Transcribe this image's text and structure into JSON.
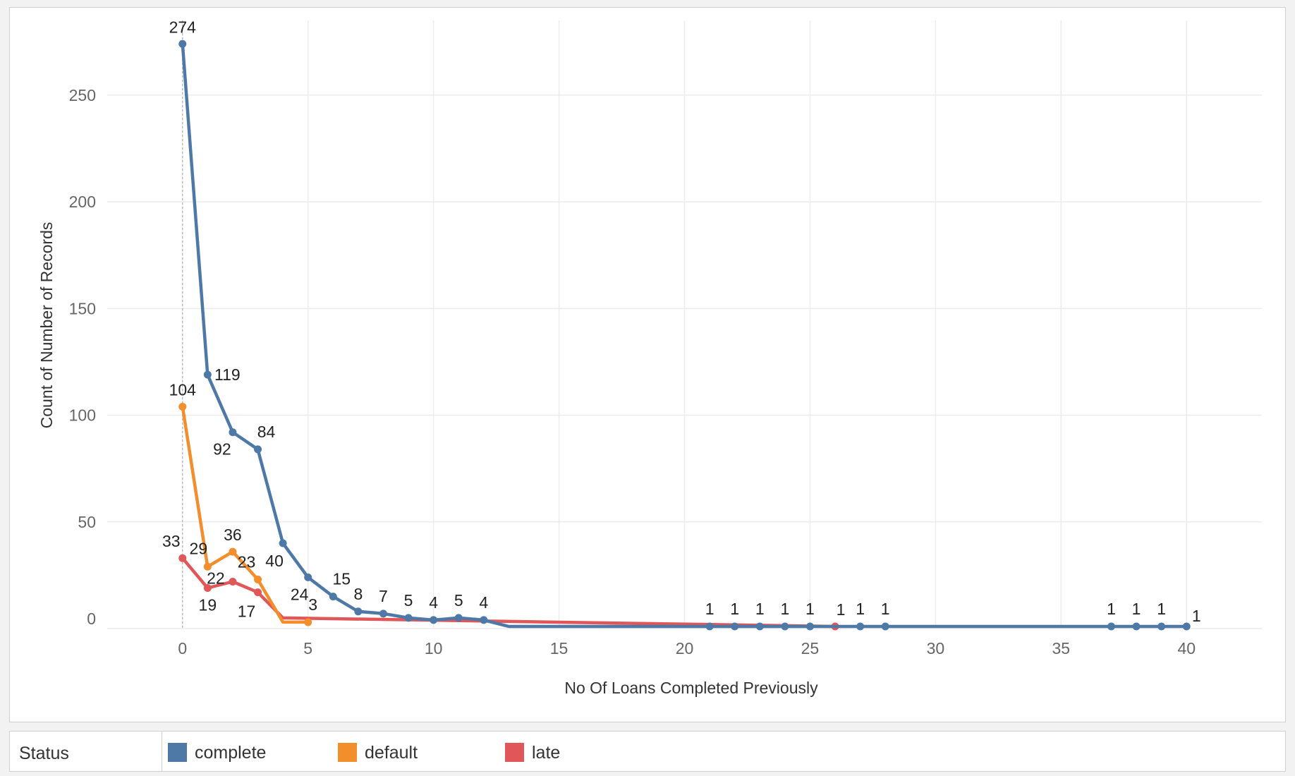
{
  "chart_data": {
    "type": "line",
    "xlabel": "No Of Loans Completed Previously",
    "ylabel": "Count of Number of Records",
    "xlim": [
      -3,
      43
    ],
    "ylim": [
      0,
      285
    ],
    "xticks": [
      0,
      5,
      10,
      15,
      20,
      25,
      30,
      35,
      40
    ],
    "yticks": [
      0,
      50,
      100,
      150,
      200,
      250
    ],
    "grid": true,
    "legend_placement": "bottom",
    "series": [
      {
        "name": "complete",
        "color": "#4e79a7",
        "points": [
          {
            "x": 0,
            "y": 274,
            "label": "274"
          },
          {
            "x": 1,
            "y": 119,
            "label": "119"
          },
          {
            "x": 2,
            "y": 92,
            "label": "92"
          },
          {
            "x": 3,
            "y": 84,
            "label": "84"
          },
          {
            "x": 4,
            "y": 40,
            "label": "40"
          },
          {
            "x": 5,
            "y": 24,
            "label": "24"
          },
          {
            "x": 6,
            "y": 15,
            "label": "15"
          },
          {
            "x": 7,
            "y": 8,
            "label": "8"
          },
          {
            "x": 8,
            "y": 7,
            "label": "7"
          },
          {
            "x": 9,
            "y": 5,
            "label": "5"
          },
          {
            "x": 10,
            "y": 4,
            "label": "4"
          },
          {
            "x": 11,
            "y": 5,
            "label": "5"
          },
          {
            "x": 12,
            "y": 4,
            "label": "4"
          },
          {
            "x": 13,
            "y": 1
          },
          {
            "x": 21,
            "y": 1,
            "label": "1"
          },
          {
            "x": 22,
            "y": 1,
            "label": "1"
          },
          {
            "x": 23,
            "y": 1,
            "label": "1"
          },
          {
            "x": 24,
            "y": 1,
            "label": "1"
          },
          {
            "x": 25,
            "y": 1,
            "label": "1"
          },
          {
            "x": 27,
            "y": 1,
            "label": "1"
          },
          {
            "x": 28,
            "y": 1,
            "label": "1"
          },
          {
            "x": 37,
            "y": 1,
            "label": "1"
          },
          {
            "x": 38,
            "y": 1,
            "label": "1"
          },
          {
            "x": 39,
            "y": 1,
            "label": "1"
          },
          {
            "x": 40,
            "y": 1,
            "label": "1"
          }
        ]
      },
      {
        "name": "default",
        "color": "#f28e2b",
        "points": [
          {
            "x": 0,
            "y": 104,
            "label": "104"
          },
          {
            "x": 1,
            "y": 29,
            "label": "29"
          },
          {
            "x": 2,
            "y": 36,
            "label": "36"
          },
          {
            "x": 3,
            "y": 23,
            "label": "23"
          },
          {
            "x": 4,
            "y": 3
          },
          {
            "x": 5,
            "y": 3,
            "label": "3"
          }
        ]
      },
      {
        "name": "late",
        "color": "#e15759",
        "points": [
          {
            "x": 0,
            "y": 33,
            "label": "33"
          },
          {
            "x": 1,
            "y": 19,
            "label": "19"
          },
          {
            "x": 2,
            "y": 22,
            "label": "22"
          },
          {
            "x": 3,
            "y": 17,
            "label": "17"
          },
          {
            "x": 4,
            "y": 5
          },
          {
            "x": 26,
            "y": 1,
            "label": "1"
          }
        ]
      }
    ]
  },
  "legend": {
    "title": "Status",
    "items": [
      {
        "label": "complete",
        "color": "#4e79a7"
      },
      {
        "label": "default",
        "color": "#f28e2b"
      },
      {
        "label": "late",
        "color": "#e15759"
      }
    ]
  }
}
